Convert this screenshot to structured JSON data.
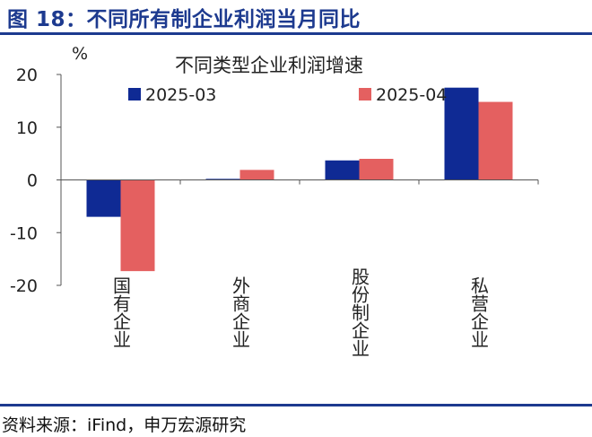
{
  "figure": {
    "title": "图 18：不同所有制企业利润当月同比",
    "source": "资料来源：iFind，申万宏源研究"
  },
  "colors": {
    "accent": "#1d3a8f",
    "series_2025_03": "#0f2a94",
    "series_2025_04": "#e46060"
  },
  "chart_data": {
    "type": "bar",
    "title": "不同类型企业利润增速",
    "ylabel": "%",
    "ylim": [
      -20,
      20
    ],
    "yticks": [
      20,
      10,
      0,
      -10,
      -20
    ],
    "legend_position": "top",
    "categories": [
      "国有企业",
      "外商企业",
      "股份制企业",
      "私营企业"
    ],
    "series": [
      {
        "name": "2025-03",
        "color": "#0f2a94",
        "values": [
          -7.0,
          0.2,
          3.7,
          17.5
        ]
      },
      {
        "name": "2025-04",
        "color": "#e46060",
        "values": [
          -17.3,
          1.9,
          4.0,
          14.8
        ]
      }
    ]
  }
}
